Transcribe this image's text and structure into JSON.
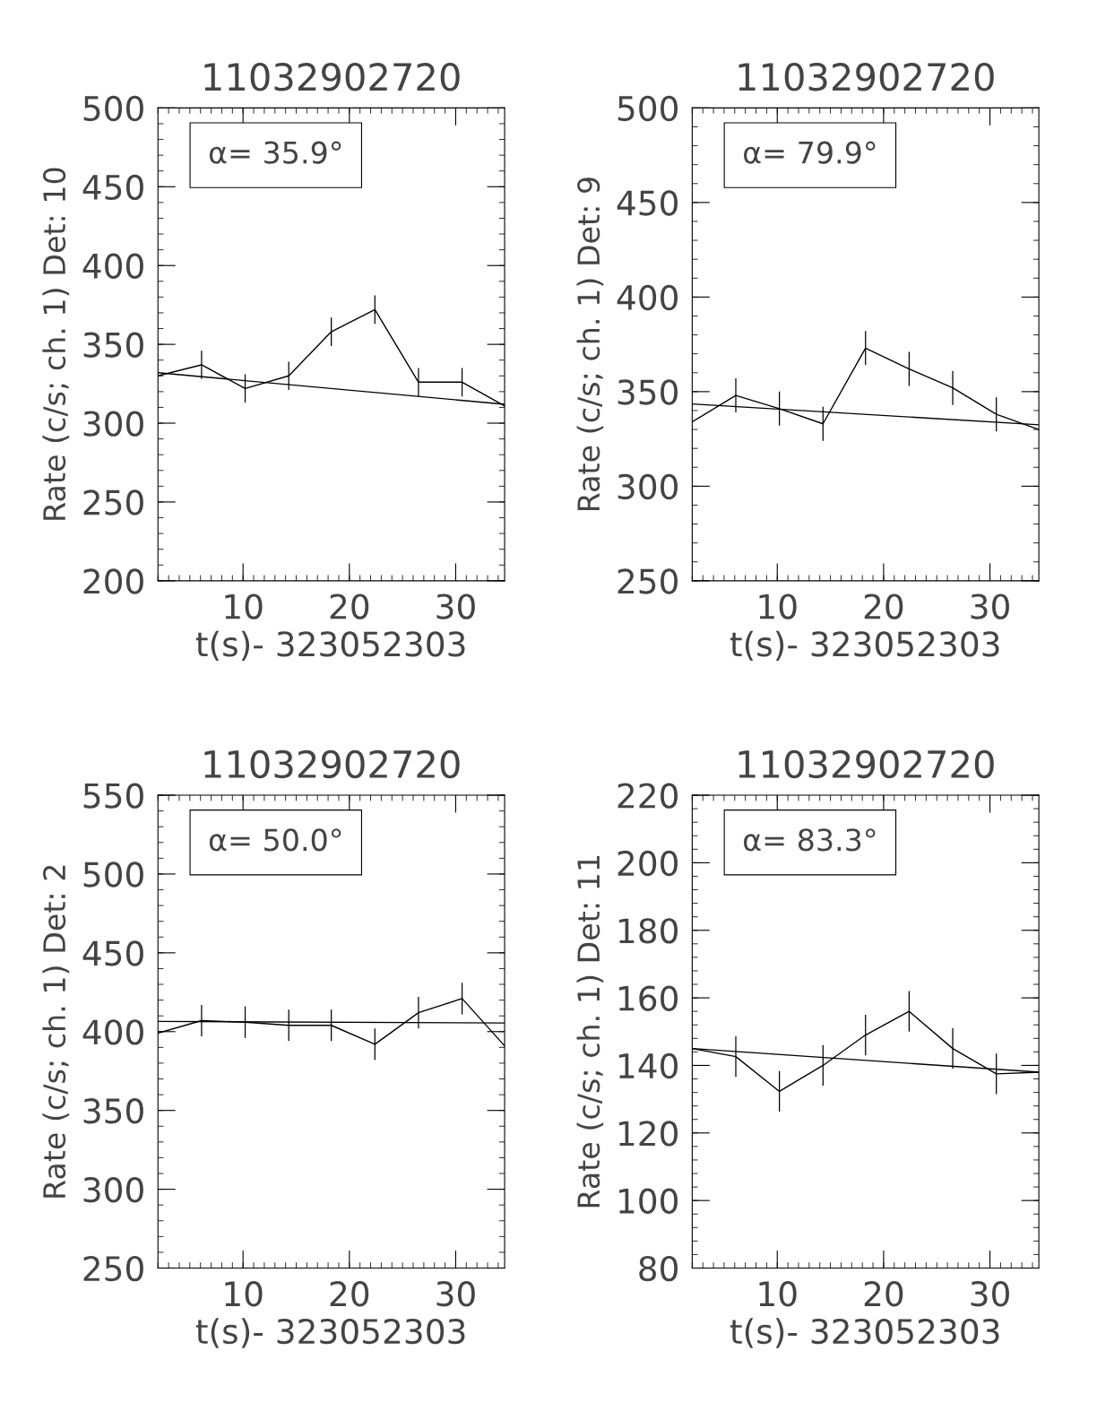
{
  "chart_data": [
    {
      "type": "line",
      "title": "11032902720",
      "xlabel": "t(s)- 323052303",
      "ylabel": "Rate (c/s; ch. 1) Det: 10",
      "xlim": [
        2,
        34.6
      ],
      "xticks": [
        10,
        20,
        30
      ],
      "ylim": [
        200,
        500
      ],
      "yticks": [
        200,
        250,
        300,
        350,
        400,
        450,
        500
      ],
      "annotations": [
        "α= 35.9°"
      ],
      "series": [
        {
          "color": "#000000",
          "x": [
            2.0,
            6.1,
            10.2,
            14.3,
            18.3,
            22.4,
            26.5,
            30.6,
            34.6
          ],
          "values": [
            330,
            337,
            322,
            330,
            358,
            372,
            326,
            326,
            311
          ],
          "errors": [
            null,
            9,
            9,
            9,
            9,
            9,
            9,
            9,
            null
          ]
        },
        {
          "color": "#000000",
          "x": [
            2.0,
            34.6
          ],
          "values": [
            332,
            312
          ]
        }
      ]
    },
    {
      "type": "line",
      "title": "11032902720",
      "xlabel": "t(s)- 323052303",
      "ylabel": "Rate (c/s; ch. 1) Det: 9",
      "xlim": [
        2,
        34.6
      ],
      "xticks": [
        10,
        20,
        30
      ],
      "ylim": [
        250,
        500
      ],
      "yticks": [
        250,
        300,
        350,
        400,
        450,
        500
      ],
      "annotations": [
        "α= 79.9°"
      ],
      "series": [
        {
          "color": "#000000",
          "x": [
            2.0,
            6.1,
            10.2,
            14.3,
            18.3,
            22.4,
            26.5,
            30.6,
            34.6
          ],
          "values": [
            334,
            348,
            341,
            333,
            373,
            362,
            352,
            338,
            330
          ],
          "errors": [
            null,
            9,
            9,
            9,
            9,
            9,
            9,
            9,
            null
          ]
        },
        {
          "color": "#000000",
          "x": [
            2.0,
            34.6
          ],
          "values": [
            343.5,
            332.5
          ]
        }
      ]
    },
    {
      "type": "line",
      "title": "11032902720",
      "xlabel": "t(s)- 323052303",
      "ylabel": "Rate (c/s; ch. 1) Det: 2",
      "xlim": [
        2,
        34.6
      ],
      "xticks": [
        10,
        20,
        30
      ],
      "ylim": [
        250,
        550
      ],
      "yticks": [
        250,
        300,
        350,
        400,
        450,
        500,
        550
      ],
      "annotations": [
        "α= 50.0°"
      ],
      "series": [
        {
          "color": "#000000",
          "x": [
            2.0,
            6.1,
            10.2,
            14.3,
            18.3,
            22.4,
            26.5,
            30.6,
            34.6
          ],
          "values": [
            399,
            407,
            406,
            404,
            404,
            392,
            412,
            421,
            391
          ],
          "errors": [
            null,
            10,
            10,
            10,
            10,
            10,
            10,
            10,
            null
          ]
        },
        {
          "color": "#000000",
          "x": [
            2.0,
            34.6
          ],
          "values": [
            406.5,
            405.5
          ]
        }
      ]
    },
    {
      "type": "line",
      "title": "11032902720",
      "xlabel": "t(s)- 323052303",
      "ylabel": "Rate (c/s; ch. 1) Det: 11",
      "xlim": [
        2,
        34.6
      ],
      "xticks": [
        10,
        20,
        30
      ],
      "ylim": [
        80,
        220
      ],
      "yticks": [
        80,
        100,
        120,
        140,
        160,
        180,
        200,
        220
      ],
      "annotations": [
        "α= 83.3°"
      ],
      "series": [
        {
          "color": "#000000",
          "x": [
            2.0,
            6.1,
            10.2,
            14.3,
            18.3,
            22.4,
            26.5,
            30.6,
            34.6
          ],
          "values": [
            145,
            142.6,
            132.3,
            140,
            149,
            156,
            145,
            137.5,
            138
          ],
          "errors": [
            null,
            6,
            6,
            6,
            6,
            6,
            6,
            6,
            null
          ]
        },
        {
          "color": "#000000",
          "x": [
            2.0,
            34.6
          ],
          "values": [
            145,
            138
          ]
        }
      ]
    }
  ]
}
